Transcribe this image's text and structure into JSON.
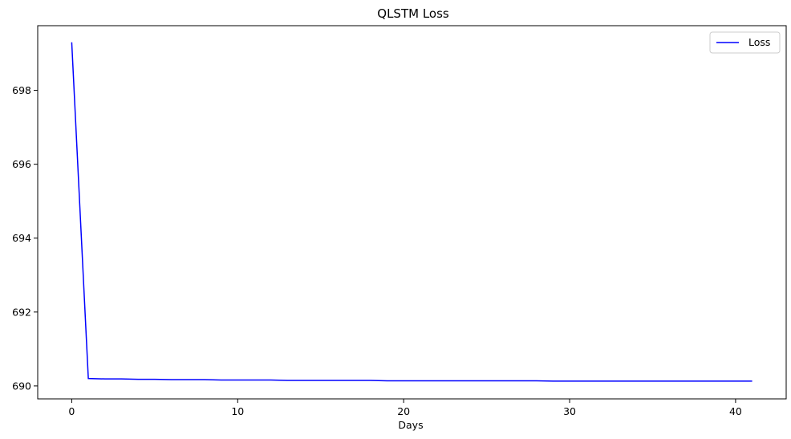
{
  "chart_data": {
    "type": "line",
    "title": "QLSTM Loss",
    "xlabel": "Days",
    "ylabel": "",
    "xlim": [
      -2.05,
      43.05
    ],
    "ylim": [
      689.65,
      699.75
    ],
    "x_ticks": [
      0,
      10,
      20,
      30,
      40
    ],
    "y_ticks": [
      690,
      692,
      694,
      696,
      698
    ],
    "grid": false,
    "legend_position": "top-right",
    "series": [
      {
        "name": "Loss",
        "color": "#0000ff",
        "x": [
          0,
          1,
          2,
          3,
          4,
          5,
          6,
          7,
          8,
          9,
          10,
          11,
          12,
          13,
          14,
          15,
          16,
          17,
          18,
          19,
          20,
          21,
          22,
          23,
          24,
          25,
          26,
          27,
          28,
          29,
          30,
          31,
          32,
          33,
          34,
          35,
          36,
          37,
          38,
          39,
          40,
          41
        ],
        "values": [
          699.3,
          690.2,
          690.19,
          690.19,
          690.18,
          690.18,
          690.17,
          690.17,
          690.17,
          690.16,
          690.16,
          690.16,
          690.16,
          690.15,
          690.15,
          690.15,
          690.15,
          690.15,
          690.15,
          690.14,
          690.14,
          690.14,
          690.14,
          690.14,
          690.14,
          690.14,
          690.14,
          690.14,
          690.14,
          690.13,
          690.13,
          690.13,
          690.13,
          690.13,
          690.13,
          690.13,
          690.13,
          690.13,
          690.13,
          690.13,
          690.13,
          690.13
        ]
      }
    ]
  }
}
